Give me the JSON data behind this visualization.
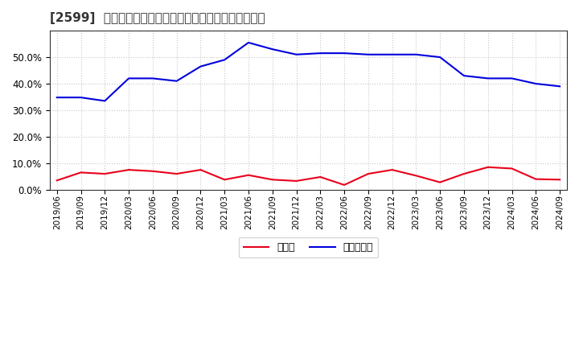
{
  "title": "[2599]  現須金、有利子負債の総資産に対する比率の推移",
  "x_labels": [
    "2019/06",
    "2019/09",
    "2019/12",
    "2020/03",
    "2020/06",
    "2020/09",
    "2020/12",
    "2021/03",
    "2021/06",
    "2021/09",
    "2021/12",
    "2022/03",
    "2022/06",
    "2022/09",
    "2022/12",
    "2023/03",
    "2023/06",
    "2023/09",
    "2023/12",
    "2024/03",
    "2024/06",
    "2024/09"
  ],
  "cash": [
    0.035,
    0.065,
    0.06,
    0.075,
    0.07,
    0.06,
    0.075,
    0.038,
    0.055,
    0.038,
    0.033,
    0.048,
    0.018,
    0.06,
    0.075,
    0.053,
    0.028,
    0.06,
    0.085,
    0.08,
    0.04,
    0.038
  ],
  "interest_bearing_debt": [
    0.348,
    0.348,
    0.335,
    0.42,
    0.42,
    0.41,
    0.465,
    0.49,
    0.555,
    0.53,
    0.51,
    0.515,
    0.515,
    0.51,
    0.51,
    0.51,
    0.5,
    0.43,
    0.42,
    0.42,
    0.4,
    0.39
  ],
  "cash_color": "#e8001c",
  "debt_color": "#0000dd",
  "legend_cash": "現須金",
  "legend_debt": "有利子負債",
  "bg_color": "#ffffff",
  "plot_bg_color": "#ffffff",
  "grid_color": "#c8c8c8",
  "title_color": "#333333",
  "ylim": [
    0.0,
    0.6
  ],
  "yticks": [
    0.0,
    0.1,
    0.2,
    0.3,
    0.4,
    0.5
  ]
}
